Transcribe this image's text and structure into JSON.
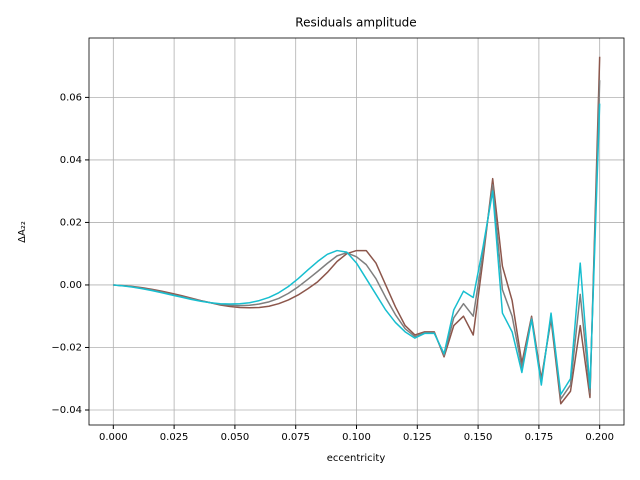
{
  "chart_data": {
    "type": "line",
    "title": "Residuals amplitude",
    "x_label": "eccentricity",
    "y_label": "ΔA₂₂",
    "x": [
      0,
      0.004,
      0.008,
      0.012,
      0.016,
      0.02,
      0.024,
      0.028,
      0.032,
      0.036,
      0.04,
      0.044,
      0.048,
      0.052,
      0.056,
      0.06,
      0.064,
      0.068,
      0.072,
      0.076,
      0.08,
      0.084,
      0.088,
      0.092,
      0.096,
      0.1,
      0.104,
      0.108,
      0.112,
      0.116,
      0.12,
      0.124,
      0.128,
      0.132,
      0.136,
      0.14,
      0.144,
      0.148,
      0.152,
      0.156,
      0.16,
      0.164,
      0.168,
      0.172,
      0.176,
      0.18,
      0.184,
      0.188,
      0.192,
      0.196,
      0.2
    ],
    "series": [
      {
        "color": "#8c564b",
        "values": [
          0,
          -0.0002,
          -0.0005,
          -0.0009,
          -0.0014,
          -0.002,
          -0.0027,
          -0.0034,
          -0.0042,
          -0.005,
          -0.0057,
          -0.0064,
          -0.0069,
          -0.0072,
          -0.0073,
          -0.0072,
          -0.0068,
          -0.006,
          -0.0048,
          -0.0032,
          -0.0012,
          0.001,
          0.004,
          0.0075,
          0.01,
          0.011,
          0.011,
          0.007,
          0.0,
          -0.007,
          -0.013,
          -0.016,
          -0.015,
          -0.015,
          -0.023,
          -0.013,
          -0.01,
          -0.016,
          0.008,
          0.034,
          0.006,
          -0.005,
          -0.025,
          -0.01,
          -0.03,
          -0.011,
          -0.038,
          -0.034,
          -0.013,
          -0.036,
          0.073
        ]
      },
      {
        "color": "#7f7f7f",
        "values": [
          0,
          -0.00025,
          -0.0006,
          -0.0011,
          -0.0016,
          -0.0023,
          -0.003,
          -0.0037,
          -0.0044,
          -0.0051,
          -0.0057,
          -0.0062,
          -0.0065,
          -0.0066,
          -0.0065,
          -0.0061,
          -0.0054,
          -0.0043,
          -0.0027,
          -0.0006,
          0.0018,
          0.0043,
          0.0069,
          0.0093,
          0.0103,
          0.009,
          0.0065,
          0.002,
          -0.004,
          -0.0095,
          -0.014,
          -0.0165,
          -0.0153,
          -0.0153,
          -0.0225,
          -0.0105,
          -0.006,
          -0.01,
          0.01,
          0.032,
          -0.0015,
          -0.01,
          -0.0265,
          -0.0105,
          -0.031,
          -0.01,
          -0.0365,
          -0.032,
          -0.003,
          -0.0345,
          0.0655
        ]
      },
      {
        "color": "#17becf",
        "values": [
          0,
          -0.0003,
          -0.0007,
          -0.0012,
          -0.0018,
          -0.0025,
          -0.0032,
          -0.0039,
          -0.0046,
          -0.0052,
          -0.0057,
          -0.006,
          -0.0061,
          -0.006,
          -0.0057,
          -0.005,
          -0.004,
          -0.0025,
          -0.0005,
          0.002,
          0.0048,
          0.0075,
          0.0098,
          0.011,
          0.0105,
          0.007,
          0.002,
          -0.003,
          -0.008,
          -0.012,
          -0.015,
          -0.017,
          -0.0155,
          -0.0155,
          -0.022,
          -0.008,
          -0.002,
          -0.004,
          0.012,
          0.03,
          -0.009,
          -0.015,
          -0.028,
          -0.011,
          -0.032,
          -0.009,
          -0.035,
          -0.03,
          0.007,
          -0.033,
          0.058
        ]
      }
    ],
    "xlim": [
      -0.01,
      0.21
    ],
    "ylim": [
      -0.0448,
      0.079
    ],
    "xticks": [
      {
        "value": 0,
        "label": "0.000"
      },
      {
        "value": 0.025,
        "label": "0.025"
      },
      {
        "value": 0.05,
        "label": "0.050"
      },
      {
        "value": 0.075,
        "label": "0.075"
      },
      {
        "value": 0.1,
        "label": "0.100"
      },
      {
        "value": 0.125,
        "label": "0.125"
      },
      {
        "value": 0.15,
        "label": "0.150"
      },
      {
        "value": 0.175,
        "label": "0.175"
      },
      {
        "value": 0.2,
        "label": "0.200"
      }
    ],
    "yticks": [
      {
        "value": -0.04,
        "label": "−0.04"
      },
      {
        "value": -0.02,
        "label": "−0.02"
      },
      {
        "value": 0,
        "label": "0.00"
      },
      {
        "value": 0.02,
        "label": "0.02"
      },
      {
        "value": 0.04,
        "label": "0.04"
      },
      {
        "value": 0.06,
        "label": "0.06"
      }
    ],
    "grid": true
  }
}
